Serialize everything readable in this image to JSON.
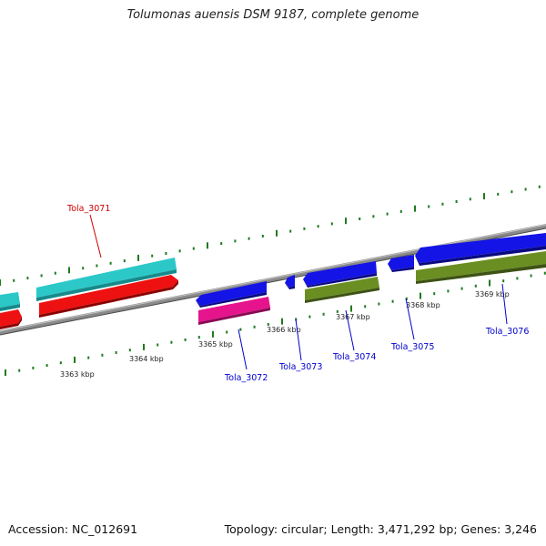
{
  "title": "Tolumonas auensis DSM 9187, complete genome",
  "footer": {
    "accession": "Accession: NC_012691",
    "summary": "Topology: circular; Length: 3,471,292 bp; Genes: 3,246"
  },
  "scale_labels": [
    "3363 kbp",
    "3364 kbp",
    "3365 kbp",
    "3366 kbp",
    "3367 kbp",
    "3368 kbp",
    "3369 kbp"
  ],
  "gene_labels": [
    {
      "name": "Tola_3071",
      "color": "#cc0000"
    },
    {
      "name": "Tola_3072",
      "color": "#0000cc"
    },
    {
      "name": "Tola_3073",
      "color": "#0000cc"
    },
    {
      "name": "Tola_3074",
      "color": "#0000cc"
    },
    {
      "name": "Tola_3075",
      "color": "#0000cc"
    },
    {
      "name": "Tola_3076",
      "color": "#0000cc"
    }
  ],
  "colors": {
    "backbone": "#7a7a7a",
    "ticks": "#1f7a1f",
    "cyan": "#2cc8c8",
    "red": "#ee1111",
    "blue": "#1414e6",
    "magenta": "#e6148c",
    "olive": "#6b8e23"
  }
}
